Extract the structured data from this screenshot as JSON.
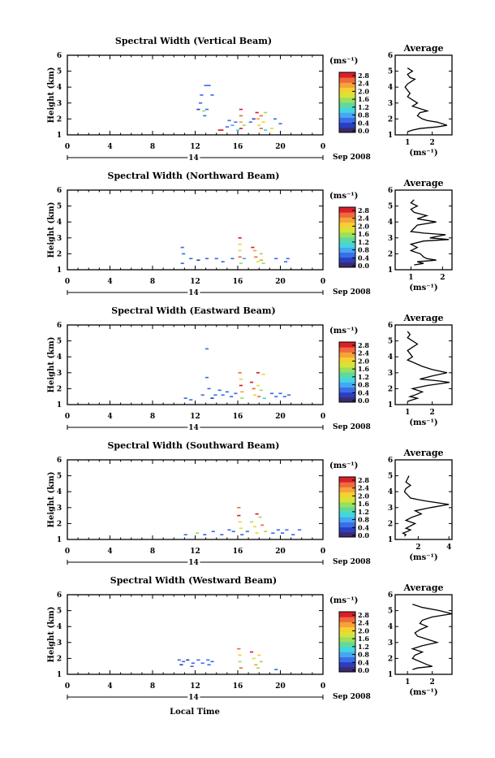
{
  "colors": {
    "scale": [
      "#3b2a6e",
      "#2a3fbf",
      "#3a6ee8",
      "#47a6f2",
      "#42d6e0",
      "#5fd9a0",
      "#9be05c",
      "#d8e33a",
      "#f5d030",
      "#f7a23b",
      "#f06a3b",
      "#d9202a"
    ]
  },
  "xlabel_bottom": "Local Time",
  "chart_data": [
    {
      "type": "heatmap",
      "title": "Spectral Width (Vertical Beam)",
      "ylabel": "Height (km)",
      "xlim": [
        0,
        24
      ],
      "ylim": [
        1,
        6
      ],
      "xticks": [
        "0",
        "4",
        "8",
        "12",
        "16",
        "20",
        "0"
      ],
      "yticks": [
        "1",
        "2",
        "3",
        "4",
        "5",
        "6"
      ],
      "date_day": "14",
      "date_label": "Sep 2008",
      "colorbar": {
        "unit": "(ms⁻¹)",
        "ticks": [
          "2.8",
          "2.4",
          "2.0",
          "1.6",
          "1.2",
          "0.8",
          "0.4",
          "0.0"
        ],
        "max": 2.8
      },
      "cells": [
        [
          13.0,
          4.1,
          0.6
        ],
        [
          13.3,
          4.1,
          0.5
        ],
        [
          12.6,
          3.5,
          0.5
        ],
        [
          13.6,
          3.5,
          0.5
        ],
        [
          12.5,
          3.0,
          0.6
        ],
        [
          12.3,
          2.6,
          0.4
        ],
        [
          12.8,
          2.5,
          1.6
        ],
        [
          13.1,
          2.6,
          0.5
        ],
        [
          12.9,
          2.2,
          0.6
        ],
        [
          14.5,
          1.3,
          2.6
        ],
        [
          14.3,
          1.3,
          2.8
        ],
        [
          15.2,
          1.9,
          0.5
        ],
        [
          15.5,
          1.6,
          0.8
        ],
        [
          15.8,
          1.8,
          0.5
        ],
        [
          16.3,
          2.6,
          2.7
        ],
        [
          16.3,
          2.2,
          2.4
        ],
        [
          16.3,
          1.8,
          2.2
        ],
        [
          16.3,
          1.4,
          2.6
        ],
        [
          16.6,
          1.6,
          1.4
        ],
        [
          17.2,
          1.8,
          0.5
        ],
        [
          17.5,
          2.0,
          0.4
        ],
        [
          17.8,
          2.4,
          2.6
        ],
        [
          17.9,
          2.0,
          2.2
        ],
        [
          18.0,
          1.6,
          1.8
        ],
        [
          18.2,
          2.2,
          2.5
        ],
        [
          18.2,
          1.4,
          2.4
        ],
        [
          18.4,
          1.8,
          1.9
        ],
        [
          18.6,
          2.4,
          1.5
        ],
        [
          18.6,
          1.3,
          1.0
        ],
        [
          19.2,
          1.4,
          1.8
        ],
        [
          19.5,
          2.0,
          0.5
        ],
        [
          20.0,
          1.7,
          0.5
        ],
        [
          15.0,
          1.5,
          0.6
        ],
        [
          16.0,
          1.3,
          1.1
        ]
      ],
      "profile": {
        "xlim": [
          0.5,
          2.8
        ],
        "xticks": [
          "1",
          "2"
        ],
        "xtick_values": [
          1,
          2
        ],
        "x": [
          1.0,
          1.2,
          1.0,
          1.1,
          1.3,
          1.2,
          1.0,
          0.9,
          1.0,
          1.1,
          1.0,
          1.2,
          1.4,
          1.3,
          1.2,
          1.6,
          1.8,
          1.5,
          1.4,
          1.6,
          1.8,
          2.2,
          2.6,
          2.2,
          1.5,
          1.2,
          1.0
        ],
        "y": [
          5.2,
          5.0,
          4.8,
          4.6,
          4.5,
          4.4,
          4.2,
          4.0,
          3.8,
          3.6,
          3.4,
          3.2,
          3.0,
          2.9,
          2.8,
          2.6,
          2.5,
          2.4,
          2.2,
          2.0,
          1.9,
          1.8,
          1.6,
          1.5,
          1.4,
          1.3,
          1.2
        ]
      }
    },
    {
      "type": "heatmap",
      "title": "Spectral Width (Northward Beam)",
      "ylabel": "Height (km)",
      "xlim": [
        0,
        24
      ],
      "ylim": [
        1,
        6
      ],
      "xticks": [
        "0",
        "4",
        "8",
        "12",
        "16",
        "20",
        "0"
      ],
      "yticks": [
        "1",
        "2",
        "3",
        "4",
        "5",
        "6"
      ],
      "date_day": "14",
      "date_label": "Sep 2008",
      "colorbar": {
        "unit": "(ms⁻¹)",
        "ticks": [
          "2.8",
          "2.4",
          "2.0",
          "1.6",
          "1.2",
          "0.8",
          "0.4",
          "0.0"
        ],
        "max": 2.8
      },
      "cells": [
        [
          10.8,
          2.4,
          0.5
        ],
        [
          10.9,
          2.0,
          0.6
        ],
        [
          10.8,
          1.4,
          0.5
        ],
        [
          11.6,
          1.7,
          0.6
        ],
        [
          12.3,
          1.6,
          0.4
        ],
        [
          13.1,
          1.7,
          0.5
        ],
        [
          14.0,
          1.7,
          0.5
        ],
        [
          14.6,
          1.5,
          0.6
        ],
        [
          15.5,
          1.7,
          0.5
        ],
        [
          16.2,
          3.0,
          2.6
        ],
        [
          16.2,
          2.6,
          2.0
        ],
        [
          16.2,
          2.2,
          1.8
        ],
        [
          16.2,
          1.8,
          2.4
        ],
        [
          16.3,
          1.4,
          1.6
        ],
        [
          16.6,
          1.7,
          0.8
        ],
        [
          17.4,
          2.4,
          2.7
        ],
        [
          17.6,
          2.2,
          2.3
        ],
        [
          17.7,
          1.8,
          2.5
        ],
        [
          17.9,
          1.5,
          1.7
        ],
        [
          18.2,
          2.0,
          1.4
        ],
        [
          18.2,
          1.6,
          2.2
        ],
        [
          18.4,
          1.4,
          1.6
        ],
        [
          19.6,
          1.7,
          0.5
        ],
        [
          20.7,
          1.7,
          0.6
        ],
        [
          20.5,
          1.5,
          0.5
        ]
      ],
      "profile": {
        "xlim": [
          0.5,
          2.3
        ],
        "xticks": [
          "1",
          "2"
        ],
        "xtick_values": [
          1,
          2
        ],
        "x": [
          1.1,
          1.0,
          1.2,
          1.0,
          1.1,
          1.5,
          1.2,
          1.8,
          1.2,
          1.1,
          1.0,
          1.4,
          2.1,
          1.6,
          2.2,
          1.4,
          1.0,
          1.2,
          1.0,
          1.3,
          1.4,
          1.5,
          1.8,
          1.2,
          1.4,
          1.1
        ],
        "y": [
          5.4,
          5.2,
          5.0,
          4.8,
          4.6,
          4.4,
          4.2,
          4.0,
          3.8,
          3.6,
          3.4,
          3.3,
          3.2,
          3.0,
          2.9,
          2.8,
          2.6,
          2.4,
          2.2,
          2.0,
          1.8,
          1.7,
          1.6,
          1.5,
          1.4,
          1.3
        ]
      }
    },
    {
      "type": "heatmap",
      "title": "Spectral Width (Eastward Beam)",
      "ylabel": "Height (km)",
      "xlim": [
        0,
        24
      ],
      "ylim": [
        1,
        6
      ],
      "xticks": [
        "0",
        "4",
        "8",
        "12",
        "16",
        "20",
        "0"
      ],
      "yticks": [
        "1",
        "2",
        "3",
        "4",
        "5",
        "6"
      ],
      "date_day": "14",
      "date_label": "Sep 2008",
      "colorbar": {
        "unit": "(ms⁻¹)",
        "ticks": [
          "2.8",
          "2.4",
          "2.0",
          "1.6",
          "1.2",
          "0.8",
          "0.4",
          "0.0"
        ],
        "max": 2.8
      },
      "cells": [
        [
          13.1,
          4.5,
          0.5
        ],
        [
          13.1,
          2.7,
          0.5
        ],
        [
          12.7,
          1.6,
          0.6
        ],
        [
          13.3,
          2.0,
          0.5
        ],
        [
          13.6,
          1.4,
          0.4
        ],
        [
          13.9,
          1.6,
          0.5
        ],
        [
          14.3,
          1.9,
          0.6
        ],
        [
          14.6,
          1.6,
          0.5
        ],
        [
          15.0,
          1.8,
          0.5
        ],
        [
          15.4,
          1.5,
          0.5
        ],
        [
          15.8,
          1.7,
          0.5
        ],
        [
          16.2,
          3.0,
          2.5
        ],
        [
          16.3,
          2.6,
          2.0
        ],
        [
          16.3,
          2.2,
          2.6
        ],
        [
          16.4,
          1.8,
          2.2
        ],
        [
          16.4,
          1.4,
          1.6
        ],
        [
          17.3,
          2.4,
          2.6
        ],
        [
          17.5,
          2.0,
          2.4
        ],
        [
          17.6,
          1.6,
          2.0
        ],
        [
          17.9,
          2.2,
          1.8
        ],
        [
          18.0,
          1.5,
          2.5
        ],
        [
          18.2,
          1.9,
          1.6
        ],
        [
          18.4,
          2.9,
          2.0
        ],
        [
          18.5,
          1.4,
          1.0
        ],
        [
          19.2,
          1.7,
          0.6
        ],
        [
          19.6,
          1.5,
          0.5
        ],
        [
          20.0,
          1.7,
          0.5
        ],
        [
          20.4,
          1.5,
          0.5
        ],
        [
          20.8,
          1.6,
          0.6
        ],
        [
          11.1,
          1.4,
          0.6
        ],
        [
          11.6,
          1.3,
          0.5
        ],
        [
          17.9,
          3.0,
          2.7
        ]
      ],
      "profile": {
        "xlim": [
          0.5,
          2.8
        ],
        "xticks": [
          "1",
          "2"
        ],
        "xtick_values": [
          1,
          2
        ],
        "x": [
          1.0,
          1.1,
          1.0,
          1.2,
          1.4,
          1.2,
          1.0,
          1.1,
          1.2,
          1.0,
          1.3,
          1.6,
          2.0,
          2.6,
          2.0,
          1.5,
          2.2,
          2.7,
          1.8,
          1.2,
          1.6,
          1.3,
          1.1,
          1.4,
          1.2,
          1.0
        ],
        "y": [
          5.6,
          5.4,
          5.2,
          5.0,
          4.8,
          4.6,
          4.4,
          4.2,
          4.0,
          3.8,
          3.6,
          3.4,
          3.2,
          3.0,
          2.8,
          2.6,
          2.5,
          2.4,
          2.2,
          2.0,
          1.8,
          1.6,
          1.5,
          1.4,
          1.3,
          1.2
        ]
      }
    },
    {
      "type": "heatmap",
      "title": "Spectral Width (Southward Beam)",
      "ylabel": "Height (km)",
      "xlim": [
        0,
        24
      ],
      "ylim": [
        1,
        6
      ],
      "xticks": [
        "0",
        "4",
        "8",
        "12",
        "16",
        "20",
        "0"
      ],
      "yticks": [
        "1",
        "2",
        "3",
        "4",
        "5",
        "6"
      ],
      "date_day": "14",
      "date_label": "Sep 2008",
      "colorbar": {
        "unit": "(ms⁻¹)",
        "ticks": [
          "2.8",
          "2.4",
          "2.0",
          "1.6",
          "1.2",
          "0.8",
          "0.4",
          "0.0"
        ],
        "max": 2.8
      },
      "cells": [
        [
          11.1,
          1.3,
          0.6
        ],
        [
          12.2,
          1.4,
          1.6
        ],
        [
          12.9,
          1.3,
          0.5
        ],
        [
          13.7,
          1.5,
          0.6
        ],
        [
          14.5,
          1.3,
          0.5
        ],
        [
          15.2,
          1.6,
          0.5
        ],
        [
          15.6,
          1.5,
          0.5
        ],
        [
          16.1,
          3.0,
          2.4
        ],
        [
          16.1,
          2.5,
          2.6
        ],
        [
          16.2,
          2.1,
          2.0
        ],
        [
          16.3,
          1.7,
          1.8
        ],
        [
          16.4,
          1.3,
          0.6
        ],
        [
          16.9,
          1.5,
          0.5
        ],
        [
          17.3,
          2.1,
          1.6
        ],
        [
          17.6,
          1.8,
          2.0
        ],
        [
          17.8,
          2.6,
          2.6
        ],
        [
          17.8,
          1.4,
          1.8
        ],
        [
          18.1,
          2.4,
          1.6
        ],
        [
          18.3,
          1.9,
          2.5
        ],
        [
          18.6,
          1.5,
          1.4
        ],
        [
          19.3,
          1.4,
          0.6
        ],
        [
          19.8,
          1.6,
          0.5
        ],
        [
          20.2,
          1.4,
          0.5
        ],
        [
          20.6,
          1.6,
          0.5
        ],
        [
          21.2,
          1.3,
          0.5
        ],
        [
          21.8,
          1.6,
          0.5
        ]
      ],
      "profile": {
        "xlim": [
          0.5,
          4.2
        ],
        "xticks": [
          "2",
          "4"
        ],
        "xtick_values": [
          2,
          4
        ],
        "x": [
          1.4,
          1.2,
          1.5,
          1.2,
          1.1,
          1.3,
          1.5,
          2.0,
          2.6,
          4.0,
          2.8,
          1.8,
          2.2,
          1.6,
          1.2,
          1.8,
          1.4,
          1.2,
          1.5,
          1.3,
          1.0,
          1.2,
          1.1
        ],
        "y": [
          5.0,
          4.6,
          4.4,
          4.2,
          4.0,
          3.8,
          3.6,
          3.5,
          3.4,
          3.2,
          3.0,
          2.8,
          2.6,
          2.4,
          2.2,
          2.0,
          1.8,
          1.7,
          1.6,
          1.5,
          1.4,
          1.3,
          1.2
        ]
      }
    },
    {
      "type": "heatmap",
      "title": "Spectral Width (Westward Beam)",
      "ylabel": "Height (km)",
      "xlim": [
        0,
        24
      ],
      "ylim": [
        1,
        6
      ],
      "xticks": [
        "0",
        "4",
        "8",
        "12",
        "16",
        "20",
        "0"
      ],
      "yticks": [
        "1",
        "2",
        "3",
        "4",
        "5",
        "6"
      ],
      "date_day": "14",
      "date_label": "Sep 2008",
      "colorbar": {
        "unit": "(ms⁻¹)",
        "ticks": [
          "2.8",
          "2.4",
          "2.0",
          "1.6",
          "1.2",
          "0.8",
          "0.4",
          "0.0"
        ],
        "max": 2.8
      },
      "cells": [
        [
          10.5,
          1.9,
          0.5
        ],
        [
          10.9,
          1.8,
          0.6
        ],
        [
          11.3,
          1.9,
          0.4
        ],
        [
          11.8,
          1.7,
          0.5
        ],
        [
          12.3,
          1.9,
          0.6
        ],
        [
          12.7,
          1.7,
          0.5
        ],
        [
          13.2,
          1.9,
          0.5
        ],
        [
          13.6,
          1.8,
          0.6
        ],
        [
          10.7,
          1.6,
          0.4
        ],
        [
          16.1,
          2.6,
          2.5
        ],
        [
          16.2,
          2.2,
          2.0
        ],
        [
          16.2,
          1.8,
          1.6
        ],
        [
          16.3,
          1.4,
          2.4
        ],
        [
          17.3,
          2.4,
          2.6
        ],
        [
          17.5,
          2.0,
          1.8
        ],
        [
          17.7,
          1.6,
          2.2
        ],
        [
          17.9,
          1.4,
          1.4
        ],
        [
          18.0,
          2.2,
          2.0
        ],
        [
          18.2,
          1.8,
          1.6
        ],
        [
          19.6,
          1.3,
          0.5
        ],
        [
          11.7,
          1.5,
          0.5
        ],
        [
          13.3,
          1.6,
          0.6
        ]
      ],
      "profile": {
        "xlim": [
          0.5,
          2.8
        ],
        "xticks": [
          "1",
          "2"
        ],
        "xtick_values": [
          1,
          2
        ],
        "x": [
          1.2,
          1.6,
          2.3,
          2.8,
          2.0,
          1.6,
          1.5,
          1.8,
          1.5,
          1.3,
          1.4,
          1.8,
          2.2,
          1.6,
          1.2,
          1.6,
          1.3,
          1.2,
          1.8,
          2.0,
          1.4,
          1.2
        ],
        "y": [
          5.4,
          5.2,
          5.0,
          4.8,
          4.6,
          4.4,
          4.2,
          4.0,
          3.8,
          3.6,
          3.4,
          3.2,
          3.0,
          2.8,
          2.6,
          2.4,
          2.2,
          2.0,
          1.6,
          1.5,
          1.4,
          1.3
        ]
      }
    }
  ],
  "profile_title": "Average",
  "profile_xlabel": "(ms⁻¹)"
}
